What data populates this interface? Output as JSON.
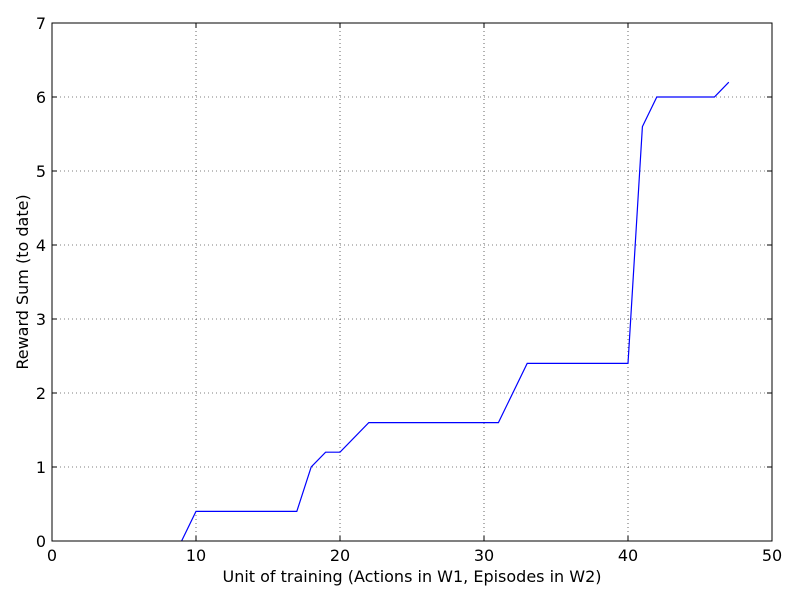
{
  "chart_data": {
    "type": "line",
    "title": "",
    "xlabel": "Unit of training (Actions in W1, Episodes in W2)",
    "ylabel": "Reward Sum (to date)",
    "xlim": [
      0,
      50
    ],
    "ylim": [
      0,
      7
    ],
    "xticks": [
      0,
      10,
      20,
      30,
      40,
      50
    ],
    "yticks": [
      0,
      1,
      2,
      3,
      4,
      5,
      6,
      7
    ],
    "grid": true,
    "line_color": "#0000ff",
    "series": [
      {
        "x": [
          9,
          10,
          17,
          18,
          19,
          20,
          22,
          31,
          33,
          40,
          41,
          42,
          46,
          47
        ],
        "y": [
          0,
          0.4,
          0.4,
          1.0,
          1.2,
          1.2,
          1.6,
          1.6,
          2.4,
          2.4,
          5.6,
          6.0,
          6.0,
          6.2
        ]
      }
    ]
  }
}
